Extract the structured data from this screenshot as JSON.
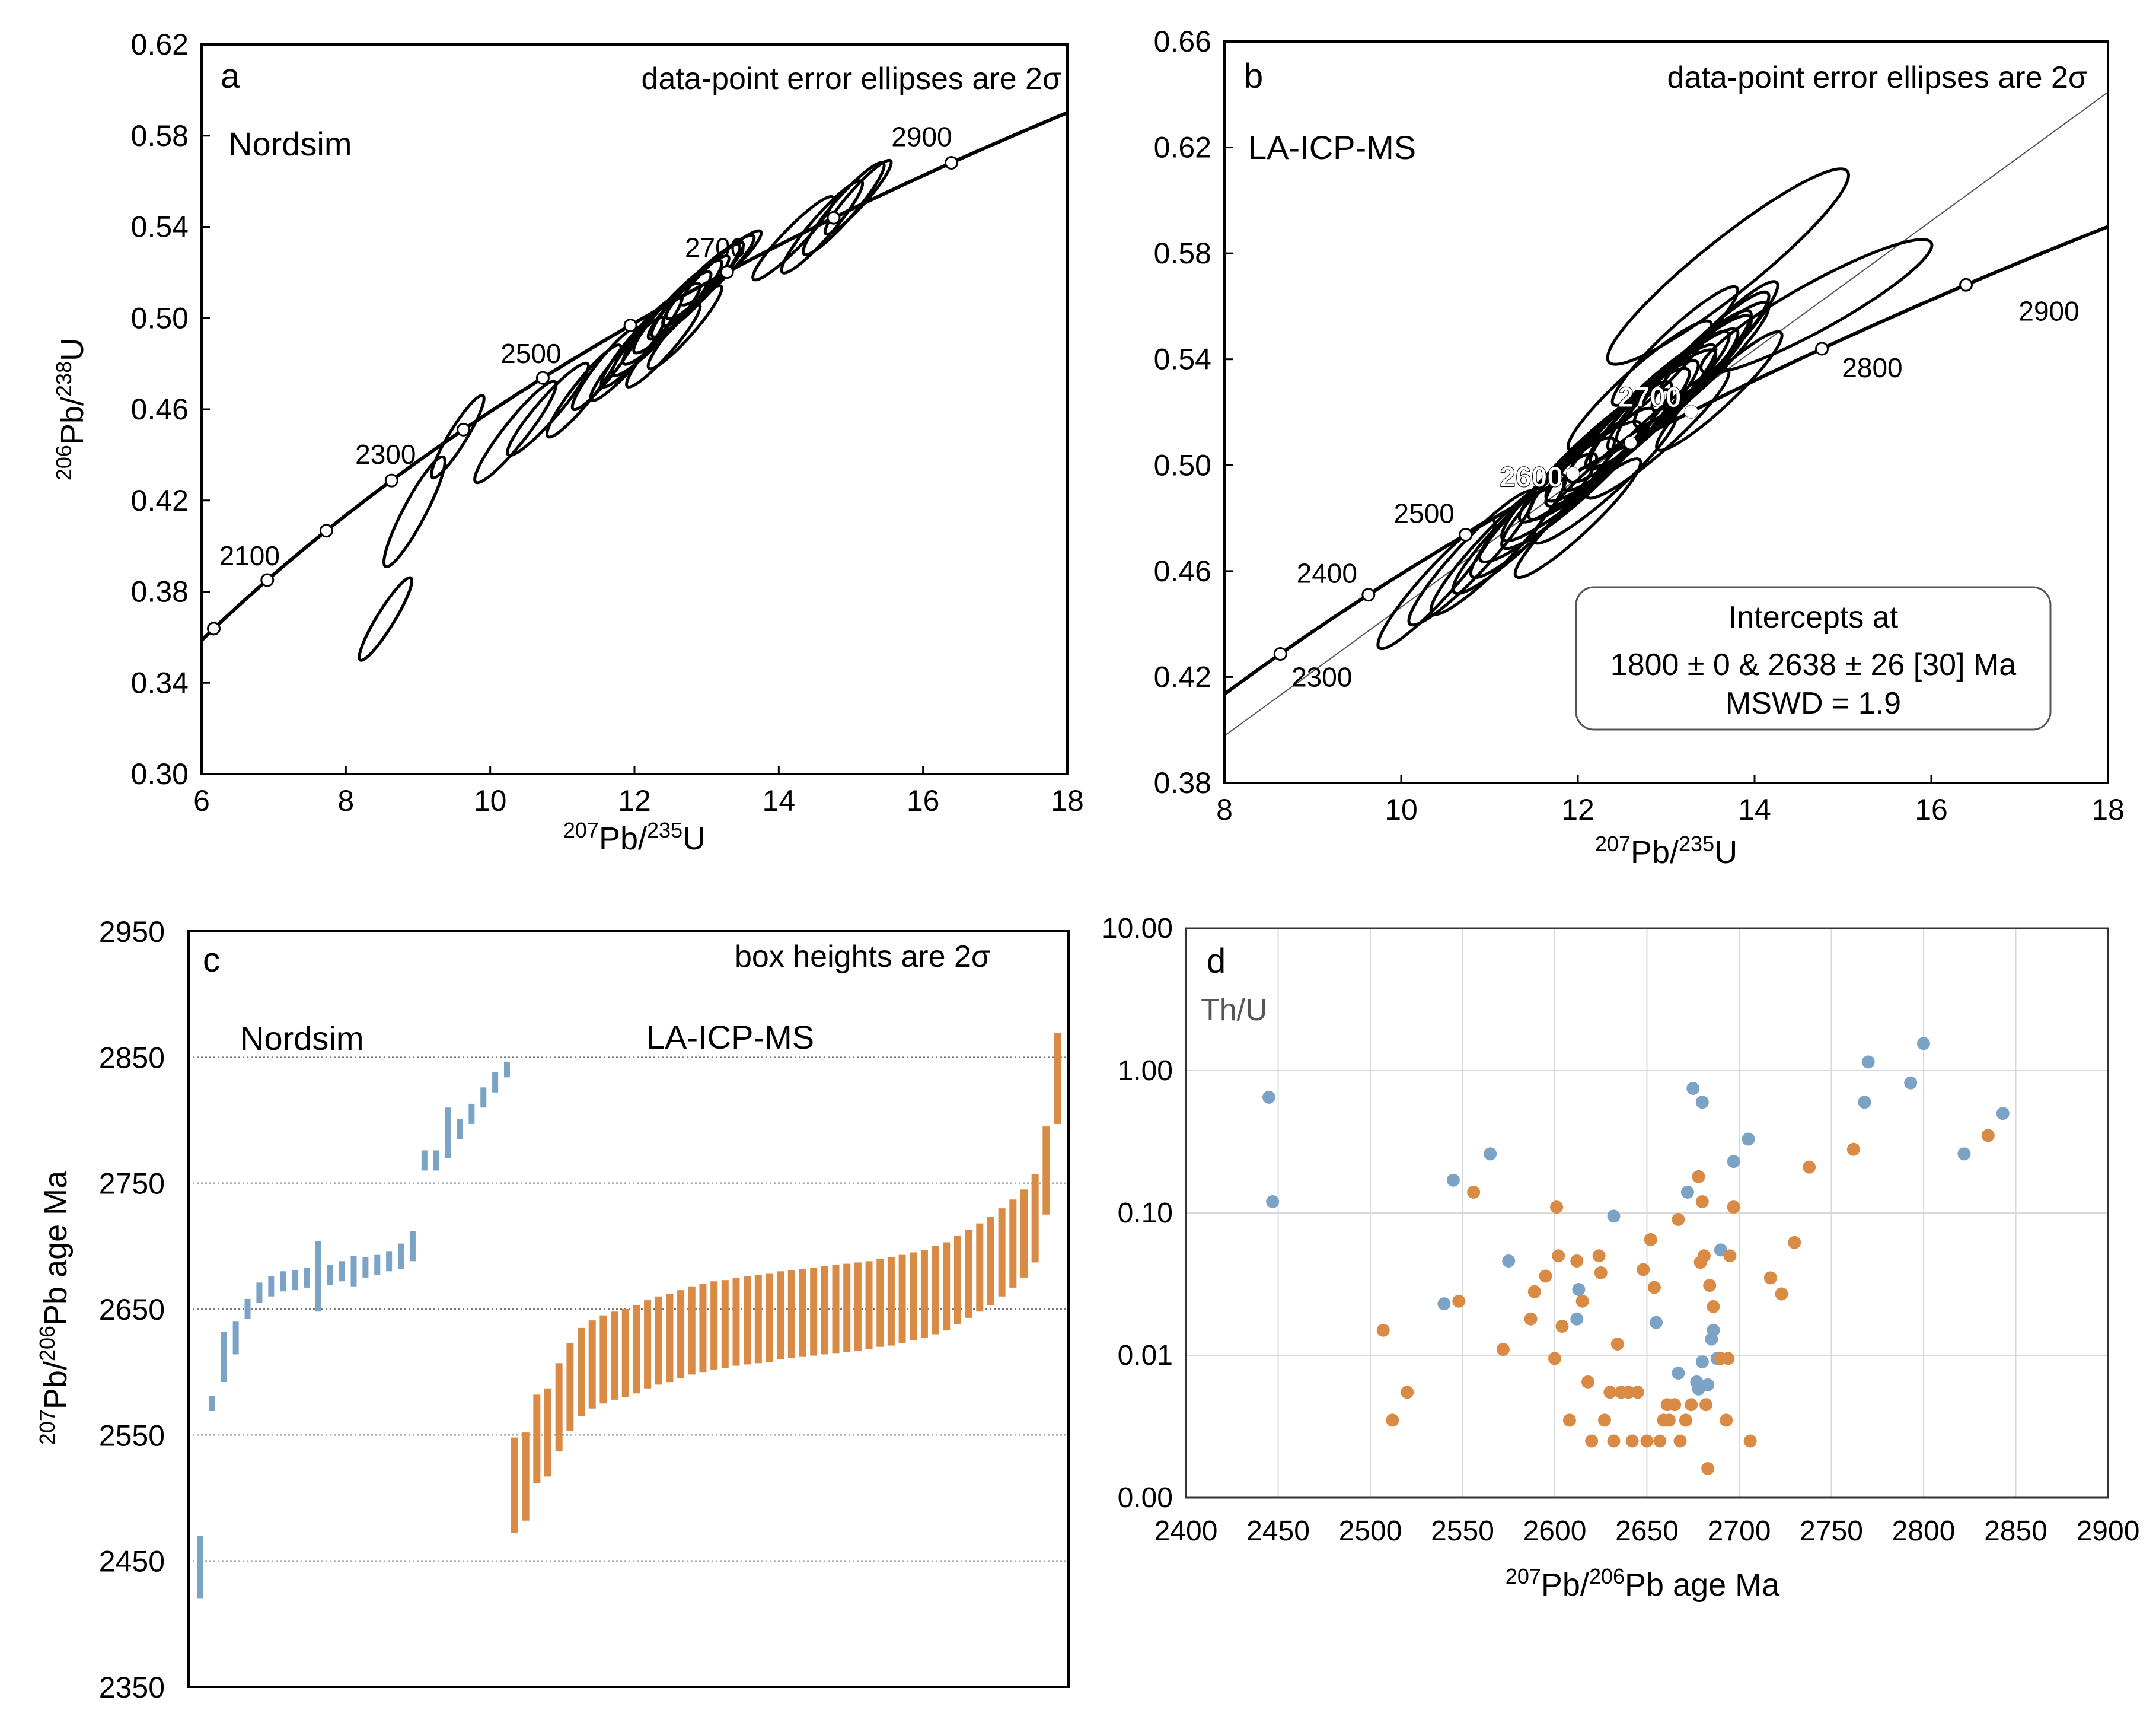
{
  "figure": {
    "colors": {
      "blue": "#7aa3c6",
      "orange": "#d98b46",
      "axis": "#000000",
      "grid": "#bbbbbb",
      "dotgrid": "#777777"
    }
  },
  "chart_data": [
    {
      "panel": "a",
      "type": "scatter",
      "title": "Nordsim",
      "annotation": "data-point error ellipses are 2σ",
      "xlabel": {
        "sup1": "207",
        "mid": "Pb/",
        "sup2": "235",
        "end": "U"
      },
      "ylabel": {
        "sup1": "206",
        "mid": "Pb/",
        "sup2": "238",
        "end": "U"
      },
      "xlim": [
        6,
        18
      ],
      "ylim": [
        0.3,
        0.62
      ],
      "xticks": [
        6,
        8,
        10,
        12,
        14,
        16,
        18
      ],
      "yticks": [
        "0.30",
        "0.34",
        "0.38",
        "0.42",
        "0.46",
        "0.50",
        "0.54",
        "0.58",
        "0.62"
      ],
      "concordia_ages": [
        2000,
        2100,
        2200,
        2300,
        2400,
        2500,
        2600,
        2700,
        2800,
        2900,
        3000
      ],
      "concordia_labels": [
        "2100",
        "2300",
        "2500",
        "2700",
        "2900"
      ],
      "ellipses": [
        {
          "x": 8.55,
          "y": 0.368,
          "rx": 0.35,
          "ry": 0.018
        },
        {
          "x": 8.95,
          "y": 0.415,
          "rx": 0.4,
          "ry": 0.024
        },
        {
          "x": 9.55,
          "y": 0.448,
          "rx": 0.35,
          "ry": 0.018
        },
        {
          "x": 10.35,
          "y": 0.45,
          "rx": 0.55,
          "ry": 0.022
        },
        {
          "x": 10.8,
          "y": 0.46,
          "rx": 0.55,
          "ry": 0.02
        },
        {
          "x": 11.3,
          "y": 0.468,
          "rx": 0.5,
          "ry": 0.02
        },
        {
          "x": 11.6,
          "y": 0.478,
          "rx": 0.45,
          "ry": 0.018
        },
        {
          "x": 11.9,
          "y": 0.482,
          "rx": 0.5,
          "ry": 0.018
        },
        {
          "x": 12.1,
          "y": 0.49,
          "rx": 0.55,
          "ry": 0.02
        },
        {
          "x": 12.3,
          "y": 0.495,
          "rx": 0.6,
          "ry": 0.02
        },
        {
          "x": 12.45,
          "y": 0.5,
          "rx": 0.6,
          "ry": 0.02
        },
        {
          "x": 12.6,
          "y": 0.505,
          "rx": 0.6,
          "ry": 0.02
        },
        {
          "x": 12.75,
          "y": 0.509,
          "rx": 0.55,
          "ry": 0.018
        },
        {
          "x": 12.85,
          "y": 0.512,
          "rx": 0.6,
          "ry": 0.02
        },
        {
          "x": 12.95,
          "y": 0.515,
          "rx": 0.55,
          "ry": 0.018
        },
        {
          "x": 13.05,
          "y": 0.518,
          "rx": 0.6,
          "ry": 0.018
        },
        {
          "x": 13.2,
          "y": 0.522,
          "rx": 0.55,
          "ry": 0.016
        },
        {
          "x": 12.4,
          "y": 0.488,
          "rx": 0.5,
          "ry": 0.018
        },
        {
          "x": 12.7,
          "y": 0.496,
          "rx": 0.5,
          "ry": 0.018
        },
        {
          "x": 14.2,
          "y": 0.535,
          "rx": 0.55,
          "ry": 0.018
        },
        {
          "x": 14.6,
          "y": 0.54,
          "rx": 0.55,
          "ry": 0.02
        },
        {
          "x": 14.9,
          "y": 0.548,
          "rx": 0.55,
          "ry": 0.02
        },
        {
          "x": 15.1,
          "y": 0.553,
          "rx": 0.45,
          "ry": 0.016
        }
      ]
    },
    {
      "panel": "b",
      "type": "scatter",
      "title": "LA-ICP-MS",
      "annotation": "data-point error ellipses are 2σ",
      "xlabel": {
        "sup1": "207",
        "mid": "Pb/",
        "sup2": "235",
        "end": "U"
      },
      "xlim": [
        8,
        18
      ],
      "ylim": [
        0.38,
        0.66
      ],
      "xticks": [
        8,
        10,
        12,
        14,
        16,
        18
      ],
      "yticks": [
        "0.38",
        "0.42",
        "0.46",
        "0.50",
        "0.54",
        "0.58",
        "0.62",
        "0.66"
      ],
      "concordia_ages": [
        2200,
        2300,
        2400,
        2500,
        2600,
        2700,
        2800,
        2900,
        3000
      ],
      "concordia_labels": [
        "2300",
        "2400",
        "2500",
        "2800",
        "2900"
      ],
      "bold_labels": [
        "2700",
        "2600"
      ],
      "discordia_intercepts_ma": [
        1800,
        2638
      ],
      "intercept_box": {
        "line1": "Intercepts at",
        "line2": "1800 ± 0 & 2638 ± 26 [30] Ma",
        "line3": "MSWD = 1.9"
      },
      "ellipses": [
        {
          "x": 13.7,
          "y": 0.575,
          "rx": 1.35,
          "ry": 0.036
        },
        {
          "x": 14.7,
          "y": 0.56,
          "rx": 1.3,
          "ry": 0.024
        },
        {
          "x": 10.4,
          "y": 0.455,
          "rx": 0.65,
          "ry": 0.024
        },
        {
          "x": 10.8,
          "y": 0.465,
          "rx": 0.7,
          "ry": 0.025
        },
        {
          "x": 11.1,
          "y": 0.47,
          "rx": 0.75,
          "ry": 0.026
        },
        {
          "x": 11.4,
          "y": 0.478,
          "rx": 0.8,
          "ry": 0.026
        },
        {
          "x": 11.6,
          "y": 0.484,
          "rx": 0.8,
          "ry": 0.026
        },
        {
          "x": 11.8,
          "y": 0.49,
          "rx": 0.9,
          "ry": 0.026
        },
        {
          "x": 12.0,
          "y": 0.495,
          "rx": 0.85,
          "ry": 0.026
        },
        {
          "x": 12.1,
          "y": 0.5,
          "rx": 0.95,
          "ry": 0.028
        },
        {
          "x": 12.2,
          "y": 0.505,
          "rx": 0.85,
          "ry": 0.026
        },
        {
          "x": 12.35,
          "y": 0.508,
          "rx": 0.9,
          "ry": 0.028
        },
        {
          "x": 12.5,
          "y": 0.512,
          "rx": 0.85,
          "ry": 0.027
        },
        {
          "x": 12.6,
          "y": 0.515,
          "rx": 0.95,
          "ry": 0.028
        },
        {
          "x": 12.7,
          "y": 0.518,
          "rx": 0.85,
          "ry": 0.027
        },
        {
          "x": 12.8,
          "y": 0.522,
          "rx": 0.9,
          "ry": 0.028
        },
        {
          "x": 12.95,
          "y": 0.525,
          "rx": 0.85,
          "ry": 0.026
        },
        {
          "x": 13.05,
          "y": 0.528,
          "rx": 0.9,
          "ry": 0.028
        },
        {
          "x": 13.15,
          "y": 0.532,
          "rx": 0.8,
          "ry": 0.026
        },
        {
          "x": 13.3,
          "y": 0.535,
          "rx": 0.85,
          "ry": 0.026
        },
        {
          "x": 13.4,
          "y": 0.54,
          "rx": 0.75,
          "ry": 0.025
        },
        {
          "x": 13.55,
          "y": 0.545,
          "rx": 0.7,
          "ry": 0.024
        },
        {
          "x": 12.3,
          "y": 0.495,
          "rx": 0.8,
          "ry": 0.024
        },
        {
          "x": 12.9,
          "y": 0.512,
          "rx": 0.8,
          "ry": 0.024
        },
        {
          "x": 13.1,
          "y": 0.545,
          "rx": 0.7,
          "ry": 0.022
        },
        {
          "x": 12.0,
          "y": 0.48,
          "rx": 0.7,
          "ry": 0.022
        },
        {
          "x": 12.7,
          "y": 0.53,
          "rx": 0.8,
          "ry": 0.024
        },
        {
          "x": 13.6,
          "y": 0.528,
          "rx": 0.7,
          "ry": 0.022
        }
      ]
    },
    {
      "panel": "c",
      "type": "bar",
      "annotation": "box heights are 2σ",
      "ylabel": {
        "sup1": "207",
        "mid": "Pb/",
        "sup2": "206",
        "end": "Pb age Ma"
      },
      "ylim": [
        2350,
        2950
      ],
      "yticks": [
        "2350",
        "2450",
        "2550",
        "2650",
        "2750",
        "2850",
        "2950"
      ],
      "gridlines": [
        2450,
        2550,
        2650,
        2750,
        2850
      ],
      "series": [
        {
          "name": "Nordsim",
          "color": "blue",
          "mid": [
            2445,
            2575,
            2612,
            2627,
            2650,
            2663,
            2668,
            2672,
            2673,
            2675,
            2676,
            2677,
            2680,
            2680,
            2683,
            2685,
            2688,
            2692,
            2700,
            2768,
            2768,
            2790,
            2793,
            2805,
            2818,
            2830,
            2840
          ],
          "err": [
            25,
            6,
            20,
            13,
            8,
            8,
            8,
            8,
            8,
            8,
            28,
            8,
            8,
            12,
            8,
            8,
            8,
            10,
            12,
            8,
            8,
            20,
            8,
            8,
            8,
            8,
            6
          ]
        },
        {
          "name": "LA-ICP-MS",
          "color": "orange",
          "mid": [
            2510,
            2517,
            2547,
            2552,
            2572,
            2588,
            2600,
            2606,
            2610,
            2613,
            2615,
            2618,
            2622,
            2625,
            2627,
            2630,
            2633,
            2635,
            2637,
            2638,
            2640,
            2641,
            2642,
            2643,
            2645,
            2646,
            2647,
            2648,
            2649,
            2650,
            2651,
            2652,
            2653,
            2655,
            2656,
            2658,
            2660,
            2662,
            2665,
            2668,
            2673,
            2678,
            2683,
            2688,
            2695,
            2702,
            2710,
            2722,
            2760,
            2833
          ],
          "err": [
            38,
            35,
            35,
            35,
            35,
            35,
            35,
            35,
            35,
            35,
            35,
            35,
            35,
            35,
            35,
            35,
            35,
            35,
            35,
            35,
            35,
            35,
            35,
            35,
            35,
            35,
            35,
            35,
            35,
            35,
            35,
            35,
            35,
            35,
            35,
            35,
            35,
            35,
            35,
            35,
            35,
            35,
            35,
            35,
            35,
            35,
            35,
            35,
            35,
            36
          ]
        }
      ]
    },
    {
      "panel": "d",
      "type": "scatter",
      "title": "Th/U",
      "xlabel": {
        "sup1": "207",
        "mid": "Pb/",
        "sup2": "206",
        "end": "Pb age Ma"
      },
      "xlim": [
        2400,
        2900
      ],
      "xticks": [
        2400,
        2450,
        2500,
        2550,
        2600,
        2650,
        2700,
        2750,
        2800,
        2850,
        2900
      ],
      "ytick_labels": [
        "0.00",
        "0.01",
        "0.10",
        "1.00",
        "10.00"
      ],
      "ylog": true,
      "yrange_log10": [
        -3,
        1
      ],
      "series": [
        {
          "name": "Nordsim",
          "color": "blue",
          "points": [
            [
              2445,
              0.65
            ],
            [
              2447,
              0.12
            ],
            [
              2540,
              0.023
            ],
            [
              2545,
              0.17
            ],
            [
              2565,
              0.26
            ],
            [
              2575,
              0.046
            ],
            [
              2612,
              0.018
            ],
            [
              2613,
              0.029
            ],
            [
              2632,
              0.095
            ],
            [
              2655,
              0.017
            ],
            [
              2667,
              0.0075
            ],
            [
              2672,
              0.14
            ],
            [
              2675,
              0.75
            ],
            [
              2677,
              0.0065
            ],
            [
              2678,
              0.0058
            ],
            [
              2680,
              0.009
            ],
            [
              2680,
              0.6
            ],
            [
              2683,
              0.0062
            ],
            [
              2685,
              0.013
            ],
            [
              2686,
              0.015
            ],
            [
              2688,
              0.0095
            ],
            [
              2690,
              0.055
            ],
            [
              2697,
              0.23
            ],
            [
              2705,
              0.33
            ],
            [
              2768,
              0.6
            ],
            [
              2770,
              1.15
            ],
            [
              2793,
              0.82
            ],
            [
              2800,
              1.55
            ],
            [
              2822,
              0.26
            ],
            [
              2843,
              0.5
            ]
          ]
        },
        {
          "name": "LA-ICP-MS",
          "color": "orange",
          "points": [
            [
              2507,
              0.015
            ],
            [
              2512,
              0.0035
            ],
            [
              2520,
              0.0055
            ],
            [
              2548,
              0.024
            ],
            [
              2556,
              0.14
            ],
            [
              2572,
              0.011
            ],
            [
              2587,
              0.018
            ],
            [
              2589,
              0.028
            ],
            [
              2595,
              0.036
            ],
            [
              2600,
              0.0095
            ],
            [
              2601,
              0.11
            ],
            [
              2602,
              0.05
            ],
            [
              2604,
              0.016
            ],
            [
              2608,
              0.0035
            ],
            [
              2612,
              0.046
            ],
            [
              2615,
              0.024
            ],
            [
              2618,
              0.0065
            ],
            [
              2620,
              0.0025
            ],
            [
              2624,
              0.05
            ],
            [
              2625,
              0.038
            ],
            [
              2627,
              0.0035
            ],
            [
              2630,
              0.0055
            ],
            [
              2632,
              0.0025
            ],
            [
              2634,
              0.012
            ],
            [
              2636,
              0.0055
            ],
            [
              2640,
              0.0055
            ],
            [
              2642,
              0.0025
            ],
            [
              2645,
              0.0055
            ],
            [
              2648,
              0.04
            ],
            [
              2650,
              0.0025
            ],
            [
              2652,
              0.065
            ],
            [
              2654,
              0.03
            ],
            [
              2657,
              0.0025
            ],
            [
              2659,
              0.0035
            ],
            [
              2661,
              0.0045
            ],
            [
              2662,
              0.0035
            ],
            [
              2665,
              0.0045
            ],
            [
              2667,
              0.09
            ],
            [
              2668,
              0.0025
            ],
            [
              2671,
              0.0035
            ],
            [
              2674,
              0.0045
            ],
            [
              2678,
              0.18
            ],
            [
              2679,
              0.045
            ],
            [
              2680,
              0.12
            ],
            [
              2681,
              0.05
            ],
            [
              2682,
              0.0045
            ],
            [
              2683,
              0.0016
            ],
            [
              2684,
              0.031
            ],
            [
              2686,
              0.022
            ],
            [
              2690,
              0.0095
            ],
            [
              2693,
              0.0035
            ],
            [
              2694,
              0.0095
            ],
            [
              2695,
              0.05
            ],
            [
              2697,
              0.11
            ],
            [
              2706,
              0.0025
            ],
            [
              2717,
              0.035
            ],
            [
              2723,
              0.027
            ],
            [
              2730,
              0.062
            ],
            [
              2738,
              0.21
            ],
            [
              2762,
              0.28
            ],
            [
              2835,
              0.35
            ]
          ]
        }
      ]
    }
  ]
}
